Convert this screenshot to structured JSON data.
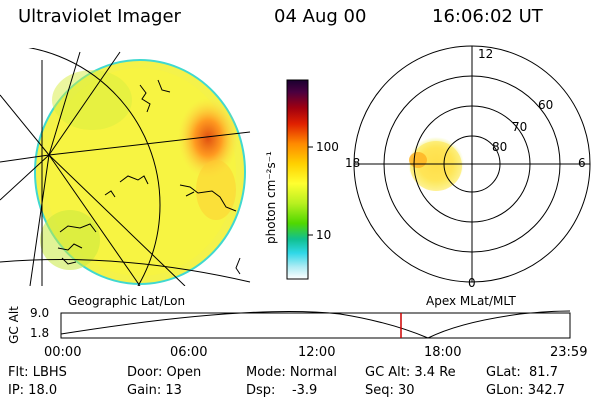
{
  "header": {
    "instrument": "Ultraviolet Imager",
    "date": "04 Aug 00",
    "time": "16:06:02 UT"
  },
  "colorbar": {
    "unit_label": "photon cm⁻²s⁻¹",
    "ticks": [
      "100",
      "10"
    ],
    "colors": [
      "#1a0030",
      "#3b0040",
      "#6b0020",
      "#a00010",
      "#d01000",
      "#f05000",
      "#ff9a00",
      "#ffd000",
      "#ffff30",
      "#c8ff20",
      "#60e000",
      "#10c080",
      "#20d0e0",
      "#80e8f0",
      "#d8f4f8",
      "#ffffff"
    ]
  },
  "globe_panel": {
    "caption": "Geographic Lat/Lon"
  },
  "polar_panel": {
    "caption": "Apex MLat/MLT",
    "mlt_labels": {
      "top": "12",
      "left": "18",
      "right": "6",
      "bottom": "0"
    },
    "lat_labels": [
      "60",
      "70",
      "80"
    ]
  },
  "altitude_plot": {
    "ylabel": "GC Alt",
    "yticks": [
      "9.0",
      "1.8"
    ],
    "xticks": [
      "00:00",
      "06:00",
      "12:00",
      "18:00",
      "23:59"
    ],
    "marker_time_hours": 16.1,
    "marker_color": "#cc0000"
  },
  "info": {
    "flt": "Flt: LBHS",
    "ip": "IP: 18.0",
    "door": "Door: Open",
    "gain": "Gain: 13",
    "mode": "Mode: Normal",
    "dsp": "Dsp:    -3.9",
    "gc_alt": "GC Alt: 3.4 Re",
    "seq": "Seq: 30",
    "glat": "GLat:  81.7",
    "glon": "GLon: 342.7"
  }
}
